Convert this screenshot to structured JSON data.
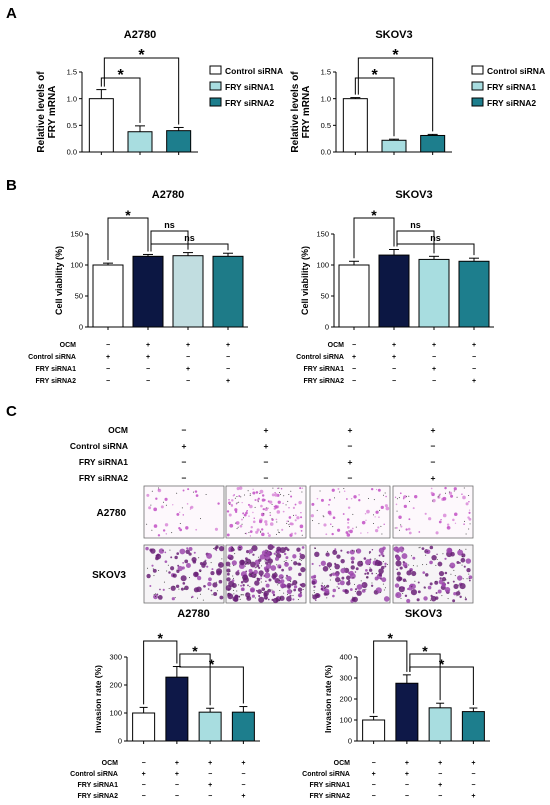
{
  "panels": {
    "a": "A",
    "b": "B",
    "c": "C"
  },
  "colors": {
    "control": "#ffffff",
    "siRNA1": "#a8dde0",
    "siRNA2": "#1d7e8d",
    "ocm": "#0e1848",
    "ocm_b": "#0c1743",
    "siRNA1_b": "#c1dde0",
    "siRNA2_b": "#1e7b88",
    "stain": "#8a2a99"
  },
  "legend": {
    "items": [
      "Control siRNA",
      "FRY siRNA1",
      "FRY siRNA2"
    ]
  },
  "treatments": {
    "labels": [
      "OCM",
      "Control siRNA",
      "FRY siRNA1",
      "FRY siRNA2"
    ],
    "signs": [
      [
        "−",
        "+",
        "+",
        "+"
      ],
      [
        "+",
        "+",
        "−",
        "−"
      ],
      [
        "−",
        "−",
        "+",
        "−"
      ],
      [
        "−",
        "−",
        "−",
        "+"
      ]
    ],
    "ab_signs": [
      [
        "+",
        "+",
        "−",
        "−"
      ],
      [
        "−",
        "−",
        "+",
        "−"
      ],
      [
        "−",
        "−",
        "−",
        "+"
      ]
    ]
  },
  "images": {
    "rows": [
      "A2780",
      "SKOV3"
    ]
  },
  "chart_data": [
    {
      "type": "bar",
      "panel": "A",
      "title": "A2780",
      "ylabel": "Relative levels of FRY mRNA",
      "ylim": [
        0,
        1.5
      ],
      "yticks": [
        "0.0",
        "0.5",
        "1.0",
        "1.5"
      ],
      "categories": [
        "Control siRNA",
        "FRY siRNA1",
        "FRY siRNA2"
      ],
      "values": [
        1.0,
        0.38,
        0.4
      ],
      "errors": [
        0.17,
        0.11,
        0.06
      ],
      "colors": [
        "#ffffff",
        "#a8dde0",
        "#1d7e8d"
      ],
      "significance": [
        {
          "from": 0,
          "to": 1,
          "label": "*"
        },
        {
          "from": 0,
          "to": 2,
          "label": "*"
        }
      ]
    },
    {
      "type": "bar",
      "panel": "A",
      "title": "SKOV3",
      "ylabel": "Relative levels of FRY mRNA",
      "ylim": [
        0,
        1.5
      ],
      "yticks": [
        "0.0",
        "0.5",
        "1.0",
        "1.5"
      ],
      "categories": [
        "Control siRNA",
        "FRY siRNA1",
        "FRY siRNA2"
      ],
      "values": [
        1.0,
        0.22,
        0.31
      ],
      "errors": [
        0.02,
        0.02,
        0.02
      ],
      "colors": [
        "#ffffff",
        "#a8dde0",
        "#1d7e8d"
      ],
      "significance": [
        {
          "from": 0,
          "to": 1,
          "label": "*"
        },
        {
          "from": 0,
          "to": 2,
          "label": "*"
        }
      ]
    },
    {
      "type": "bar",
      "panel": "B",
      "title": "A2780",
      "ylabel": "Cell viability (%)",
      "ylim": [
        0,
        150
      ],
      "yticks": [
        "0",
        "50",
        "100",
        "150"
      ],
      "values": [
        100,
        114,
        115,
        114
      ],
      "errors": [
        3,
        3,
        5,
        5
      ],
      "colors": [
        "#ffffff",
        "#0c1743",
        "#c1dde0",
        "#1e7b88"
      ],
      "significance": [
        {
          "from": 0,
          "to": 1,
          "label": "*"
        },
        {
          "from": 1,
          "to": 2,
          "label": "ns"
        },
        {
          "from": 1,
          "to": 3,
          "label": "ns"
        }
      ]
    },
    {
      "type": "bar",
      "panel": "B",
      "title": "SKOV3",
      "ylabel": "Cell viability (%)",
      "ylim": [
        0,
        150
      ],
      "yticks": [
        "0",
        "50",
        "100",
        "150"
      ],
      "values": [
        100,
        116,
        109,
        106
      ],
      "errors": [
        6,
        9,
        5,
        5
      ],
      "colors": [
        "#ffffff",
        "#0c1743",
        "#a8dde0",
        "#1d7e8d"
      ],
      "significance": [
        {
          "from": 0,
          "to": 1,
          "label": "*"
        },
        {
          "from": 1,
          "to": 2,
          "label": "ns"
        },
        {
          "from": 1,
          "to": 3,
          "label": "ns"
        }
      ]
    },
    {
      "type": "bar",
      "panel": "C",
      "title": "A2780",
      "ylabel": "Invasion rate (%)",
      "ylim": [
        0,
        300
      ],
      "yticks": [
        "0",
        "100",
        "200",
        "300"
      ],
      "values": [
        100,
        228,
        103,
        103
      ],
      "errors": [
        20,
        38,
        14,
        20
      ],
      "colors": [
        "#ffffff",
        "#0e1848",
        "#a8dde0",
        "#1d7e8d"
      ],
      "significance": [
        {
          "from": 0,
          "to": 1,
          "label": "*"
        },
        {
          "from": 1,
          "to": 2,
          "label": "*"
        },
        {
          "from": 1,
          "to": 3,
          "label": "*"
        }
      ]
    },
    {
      "type": "bar",
      "panel": "C",
      "title": "SKOV3",
      "ylabel": "Invasion rate (%)",
      "ylim": [
        0,
        400
      ],
      "yticks": [
        "0",
        "100",
        "200",
        "300",
        "400"
      ],
      "values": [
        100,
        275,
        158,
        140
      ],
      "errors": [
        17,
        40,
        22,
        17
      ],
      "colors": [
        "#ffffff",
        "#0e1848",
        "#a8dde0",
        "#1d7e8d"
      ],
      "significance": [
        {
          "from": 0,
          "to": 1,
          "label": "*"
        },
        {
          "from": 1,
          "to": 2,
          "label": "*"
        },
        {
          "from": 1,
          "to": 3,
          "label": "*"
        }
      ]
    }
  ]
}
